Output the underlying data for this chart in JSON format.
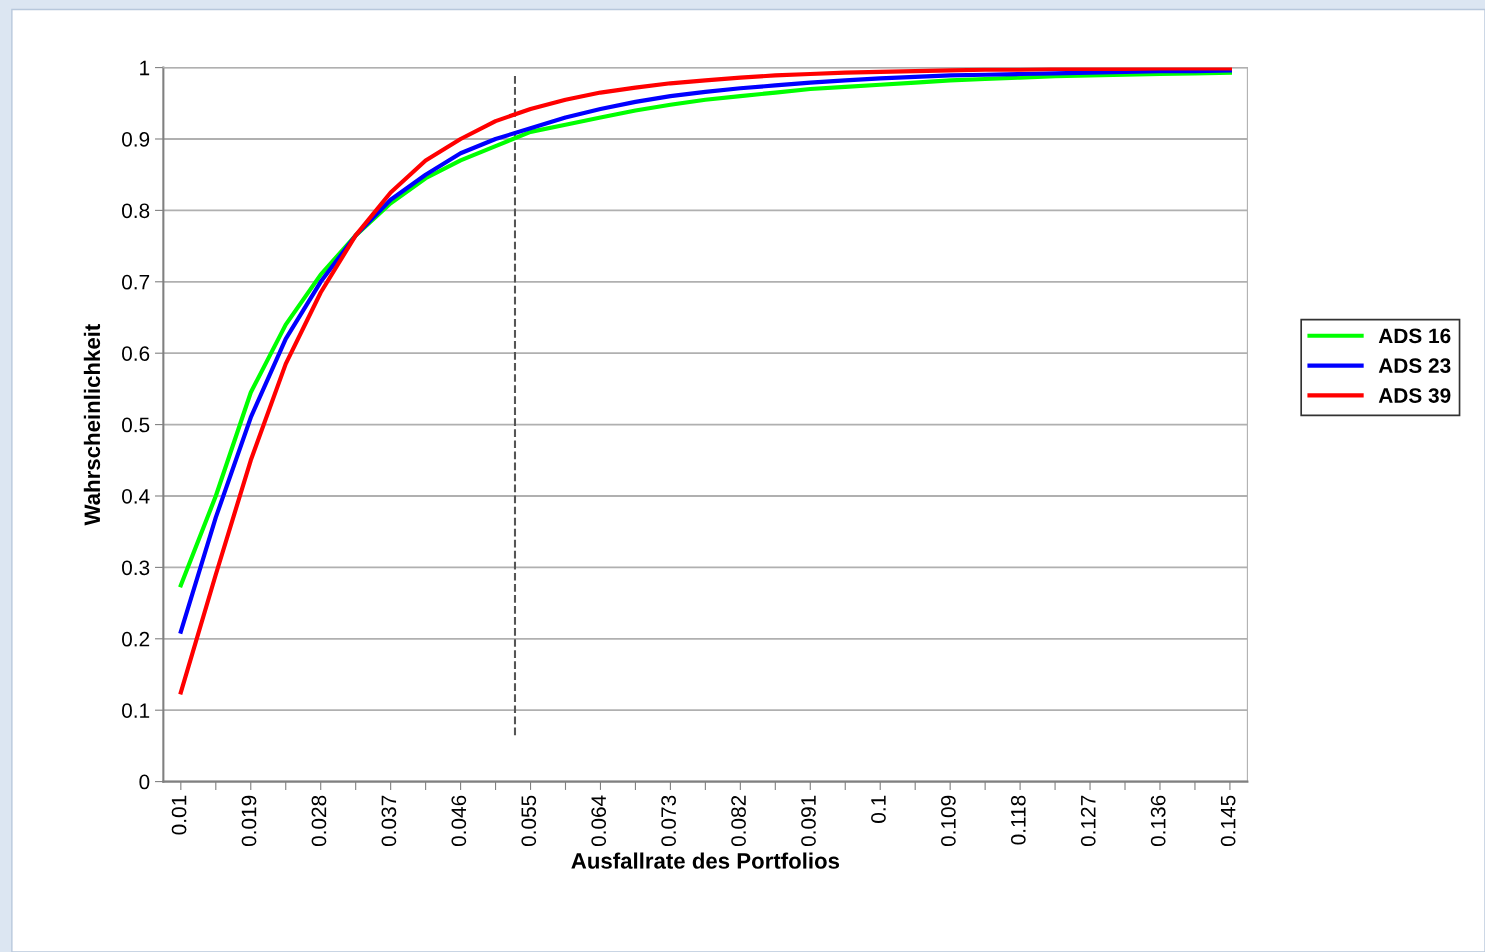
{
  "chart_data": {
    "type": "line",
    "xlabel": "Ausfallrate des Portfolios",
    "ylabel": "Wahrscheinlichkeit",
    "x": [
      0.01,
      0.0145,
      0.019,
      0.0235,
      0.028,
      0.0325,
      0.037,
      0.0415,
      0.046,
      0.0505,
      0.055,
      0.0595,
      0.064,
      0.0685,
      0.073,
      0.0775,
      0.082,
      0.0865,
      0.091,
      0.0955,
      0.1,
      0.1045,
      0.109,
      0.1135,
      0.118,
      0.1225,
      0.127,
      0.1315,
      0.136,
      0.1405,
      0.145
    ],
    "series": [
      {
        "name": "ADS 16",
        "color": "#00ff00",
        "values": [
          0.275,
          0.4,
          0.545,
          0.64,
          0.71,
          0.765,
          0.81,
          0.845,
          0.87,
          0.89,
          0.91,
          0.92,
          0.93,
          0.94,
          0.948,
          0.955,
          0.96,
          0.965,
          0.97,
          0.973,
          0.976,
          0.979,
          0.982,
          0.984,
          0.986,
          0.988,
          0.989,
          0.99,
          0.991,
          0.992,
          0.993
        ]
      },
      {
        "name": "ADS 23",
        "color": "#0000ff",
        "values": [
          0.21,
          0.37,
          0.51,
          0.62,
          0.7,
          0.765,
          0.815,
          0.85,
          0.88,
          0.9,
          0.915,
          0.93,
          0.942,
          0.952,
          0.96,
          0.966,
          0.971,
          0.975,
          0.979,
          0.982,
          0.985,
          0.987,
          0.989,
          0.99,
          0.991,
          0.992,
          0.993,
          0.994,
          0.995,
          0.995,
          0.996
        ]
      },
      {
        "name": "ADS 39",
        "color": "#ff0000",
        "values": [
          0.125,
          0.29,
          0.45,
          0.585,
          0.685,
          0.765,
          0.825,
          0.87,
          0.9,
          0.925,
          0.942,
          0.955,
          0.965,
          0.972,
          0.978,
          0.982,
          0.986,
          0.989,
          0.991,
          0.993,
          0.994,
          0.995,
          0.996,
          0.997,
          0.997,
          0.998,
          0.998,
          0.998,
          0.999,
          0.999,
          0.999
        ]
      }
    ],
    "xlim": [
      0.00775,
      0.14725
    ],
    "xticks": [
      0.01,
      {
        "value": 0.0145,
        "label": null
      },
      0.019,
      {
        "value": 0.0235,
        "label": null
      },
      0.028,
      {
        "value": 0.0325,
        "label": null
      },
      0.037,
      {
        "value": 0.0415,
        "label": null
      },
      0.046,
      {
        "value": 0.0505,
        "label": null
      },
      0.055,
      {
        "value": 0.0595,
        "label": null
      },
      0.064,
      {
        "value": 0.0685,
        "label": null
      },
      0.073,
      {
        "value": 0.0775,
        "label": null
      },
      0.082,
      {
        "value": 0.0865,
        "label": null
      },
      0.091,
      {
        "value": 0.0955,
        "label": null
      },
      0.1,
      {
        "value": 0.1045,
        "label": null
      },
      0.109,
      {
        "value": 0.1135,
        "label": null
      },
      0.118,
      {
        "value": 0.1225,
        "label": null
      },
      0.127,
      {
        "value": 0.1315,
        "label": null
      },
      0.136,
      {
        "value": 0.1405,
        "label": null
      },
      0.145
    ],
    "ylim": [
      0,
      1
    ],
    "yticks": [
      0,
      0.1,
      0.2,
      0.3,
      0.4,
      0.5,
      0.6,
      0.7,
      0.8,
      0.9,
      1
    ],
    "ref_lines": [
      {
        "axis": "x",
        "value": 0.053,
        "color": "#555555",
        "line_style": "dashed"
      }
    ],
    "grid": "y",
    "legend": "right",
    "marker": "none",
    "line_style": "solid"
  }
}
